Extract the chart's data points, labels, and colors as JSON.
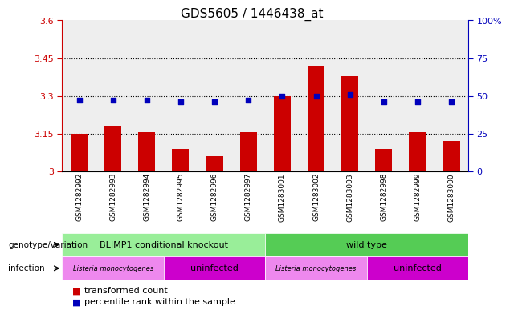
{
  "title": "GDS5605 / 1446438_at",
  "samples": [
    "GSM1282992",
    "GSM1282993",
    "GSM1282994",
    "GSM1282995",
    "GSM1282996",
    "GSM1282997",
    "GSM1283001",
    "GSM1283002",
    "GSM1283003",
    "GSM1282998",
    "GSM1282999",
    "GSM1283000"
  ],
  "transformed_count": [
    3.15,
    3.18,
    3.155,
    3.09,
    3.06,
    3.155,
    3.3,
    3.42,
    3.38,
    3.09,
    3.155,
    3.12
  ],
  "percentile_rank_pct": [
    47,
    47,
    47,
    46,
    46,
    47,
    50,
    50,
    51,
    46,
    46,
    46
  ],
  "bar_color": "#cc0000",
  "dot_color": "#0000bb",
  "ylim_left": [
    3.0,
    3.6
  ],
  "ylim_right": [
    0,
    100
  ],
  "yticks_left": [
    3.0,
    3.15,
    3.3,
    3.45,
    3.6
  ],
  "yticks_right": [
    0,
    25,
    50,
    75,
    100
  ],
  "ytick_labels_left": [
    "3",
    "3.15",
    "3.3",
    "3.45",
    "3.6"
  ],
  "ytick_labels_right": [
    "0",
    "25",
    "50",
    "75",
    "100%"
  ],
  "hlines": [
    3.15,
    3.3,
    3.45
  ],
  "genotype_groups": [
    {
      "label": "BLIMP1 conditional knockout",
      "start": 0,
      "end": 6,
      "color": "#99ee99"
    },
    {
      "label": "wild type",
      "start": 6,
      "end": 12,
      "color": "#55cc55"
    }
  ],
  "infection_groups": [
    {
      "label": "Listeria monocytogenes",
      "start": 0,
      "end": 3,
      "color": "#ee88ee"
    },
    {
      "label": "uninfected",
      "start": 3,
      "end": 6,
      "color": "#cc00cc"
    },
    {
      "label": "Listeria monocytogenes",
      "start": 6,
      "end": 9,
      "color": "#ee88ee"
    },
    {
      "label": "uninfected",
      "start": 9,
      "end": 12,
      "color": "#cc00cc"
    }
  ],
  "left_axis_color": "#cc0000",
  "right_axis_color": "#0000bb",
  "plot_bg_color": "#eeeeee",
  "xtick_bg_color": "#cccccc"
}
